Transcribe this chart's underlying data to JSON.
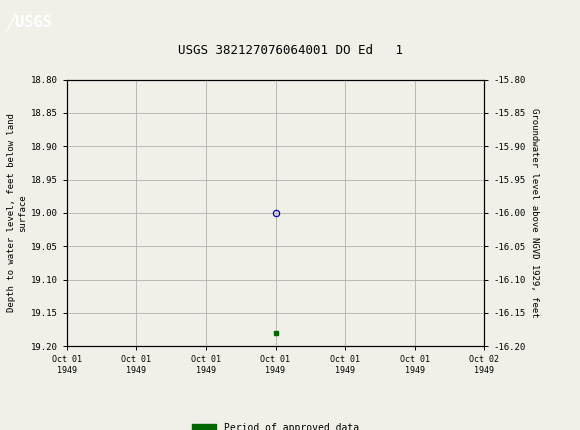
{
  "title": "USGS 382127076064001 DO Ed   1",
  "ylabel_left": "Depth to water level, feet below land\nsurface",
  "ylabel_right": "Groundwater level above NGVD 1929, feet",
  "ylim_left": [
    18.8,
    19.2
  ],
  "ylim_right": [
    -15.8,
    -16.2
  ],
  "yticks_left": [
    18.8,
    18.85,
    18.9,
    18.95,
    19.0,
    19.05,
    19.1,
    19.15,
    19.2
  ],
  "yticks_right": [
    -15.8,
    -15.85,
    -15.9,
    -15.95,
    -16.0,
    -16.05,
    -16.1,
    -16.15,
    -16.2
  ],
  "xtick_labels": [
    "Oct 01\n1949",
    "Oct 01\n1949",
    "Oct 01\n1949",
    "Oct 01\n1949",
    "Oct 01\n1949",
    "Oct 01\n1949",
    "Oct 02\n1949"
  ],
  "data_point_x": 3.0,
  "data_point_y": 19.0,
  "data_point_color": "#0000cc",
  "green_marker_x": 3.0,
  "green_marker_y": 19.18,
  "green_color": "#006600",
  "legend_label": "Period of approved data",
  "header_color": "#006633",
  "bg_color": "#f0f0e8",
  "plot_bg_color": "#f0f0e8",
  "grid_color": "#b0b0b0",
  "font_color": "#000000",
  "xlim": [
    0,
    6
  ]
}
